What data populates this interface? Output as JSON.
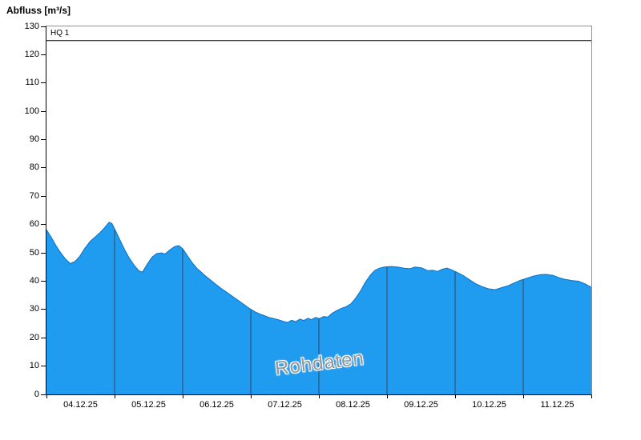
{
  "colors": {
    "area_fill": "#1f9bf0",
    "area_stroke": "#0b6fc2",
    "day_line": "#3a4656",
    "hq_line": "#000000",
    "axis": "#000000",
    "frame": "#909090",
    "watermark_text": "#8f969c"
  },
  "chart_data": {
    "type": "area",
    "title": "Abfluss [m³/s]",
    "ylabel": "Abfluss [m³/s]",
    "xlabel": "",
    "watermark": "Rohdaten",
    "hq1": {
      "label": "HQ 1",
      "value": 125
    },
    "ylim": [
      0,
      130
    ],
    "y_step": 10,
    "x_range": [
      0,
      8
    ],
    "x_unit": "days from 04.12.25 00:00",
    "x_tick_labels": [
      "04.12.25",
      "05.12.25",
      "06.12.25",
      "07.12.25",
      "08.12.25",
      "09.12.25",
      "10.12.25",
      "11.12.25"
    ],
    "day_boundaries": [
      1,
      2,
      3,
      4,
      5,
      6,
      7
    ],
    "grid": "vertical-day-lines-inside-area-only",
    "legend": "none",
    "series": [
      {
        "name": "Abfluss Rohdaten",
        "points": [
          [
            0,
            58.2
          ],
          [
            0.07,
            55.5
          ],
          [
            0.14,
            52.5
          ],
          [
            0.21,
            50
          ],
          [
            0.28,
            47.8
          ],
          [
            0.35,
            46.2
          ],
          [
            0.42,
            47
          ],
          [
            0.49,
            48.8
          ],
          [
            0.56,
            51.5
          ],
          [
            0.64,
            54
          ],
          [
            0.71,
            55.5
          ],
          [
            0.78,
            57
          ],
          [
            0.85,
            58.8
          ],
          [
            0.92,
            60.8
          ],
          [
            0.96,
            60.4
          ],
          [
            1.02,
            57.5
          ],
          [
            1.08,
            54.5
          ],
          [
            1.15,
            51
          ],
          [
            1.22,
            48
          ],
          [
            1.29,
            45.5
          ],
          [
            1.36,
            43.6
          ],
          [
            1.41,
            43.2
          ],
          [
            1.48,
            46
          ],
          [
            1.55,
            48.5
          ],
          [
            1.62,
            49.8
          ],
          [
            1.69,
            50
          ],
          [
            1.74,
            49.6
          ],
          [
            1.81,
            51
          ],
          [
            1.88,
            52.2
          ],
          [
            1.94,
            52.6
          ],
          [
            2.0,
            51.5
          ],
          [
            2.07,
            49
          ],
          [
            2.14,
            46.5
          ],
          [
            2.21,
            44.5
          ],
          [
            2.28,
            43
          ],
          [
            2.35,
            41.5
          ],
          [
            2.42,
            40.2
          ],
          [
            2.49,
            38.8
          ],
          [
            2.56,
            37.5
          ],
          [
            2.64,
            36.2
          ],
          [
            2.71,
            35
          ],
          [
            2.78,
            33.8
          ],
          [
            2.85,
            32.6
          ],
          [
            2.92,
            31.4
          ],
          [
            2.99,
            30.2
          ],
          [
            3.06,
            29.2
          ],
          [
            3.13,
            28.4
          ],
          [
            3.2,
            27.8
          ],
          [
            3.27,
            27.2
          ],
          [
            3.34,
            26.8
          ],
          [
            3.41,
            26.3
          ],
          [
            3.48,
            25.8
          ],
          [
            3.54,
            25.4
          ],
          [
            3.6,
            26.2
          ],
          [
            3.66,
            25.7
          ],
          [
            3.72,
            26.6
          ],
          [
            3.78,
            26.1
          ],
          [
            3.84,
            26.9
          ],
          [
            3.89,
            26.4
          ],
          [
            3.95,
            27.2
          ],
          [
            4.01,
            26.8
          ],
          [
            4.07,
            27.5
          ],
          [
            4.13,
            27.3
          ],
          [
            4.19,
            28.6
          ],
          [
            4.26,
            29.6
          ],
          [
            4.33,
            30.4
          ],
          [
            4.4,
            31
          ],
          [
            4.47,
            32
          ],
          [
            4.54,
            34
          ],
          [
            4.61,
            36.5
          ],
          [
            4.68,
            39.5
          ],
          [
            4.75,
            42
          ],
          [
            4.82,
            43.8
          ],
          [
            4.89,
            44.6
          ],
          [
            4.96,
            45
          ],
          [
            5.06,
            45.2
          ],
          [
            5.15,
            45
          ],
          [
            5.25,
            44.6
          ],
          [
            5.34,
            44.4
          ],
          [
            5.41,
            45
          ],
          [
            5.51,
            44.7
          ],
          [
            5.6,
            43.7
          ],
          [
            5.67,
            43.9
          ],
          [
            5.74,
            43.4
          ],
          [
            5.81,
            44.2
          ],
          [
            5.88,
            44.6
          ],
          [
            5.95,
            44
          ],
          [
            6.02,
            43.2
          ],
          [
            6.12,
            42
          ],
          [
            6.21,
            40.5
          ],
          [
            6.31,
            39
          ],
          [
            6.4,
            38
          ],
          [
            6.49,
            37.3
          ],
          [
            6.59,
            37
          ],
          [
            6.68,
            37.7
          ],
          [
            6.78,
            38.4
          ],
          [
            6.87,
            39.4
          ],
          [
            6.96,
            40.3
          ],
          [
            7.06,
            41.1
          ],
          [
            7.15,
            41.8
          ],
          [
            7.25,
            42.3
          ],
          [
            7.34,
            42.4
          ],
          [
            7.44,
            42
          ],
          [
            7.53,
            41.2
          ],
          [
            7.62,
            40.6
          ],
          [
            7.72,
            40.2
          ],
          [
            7.81,
            40
          ],
          [
            7.91,
            39
          ],
          [
            8,
            37.8
          ]
        ]
      }
    ]
  }
}
